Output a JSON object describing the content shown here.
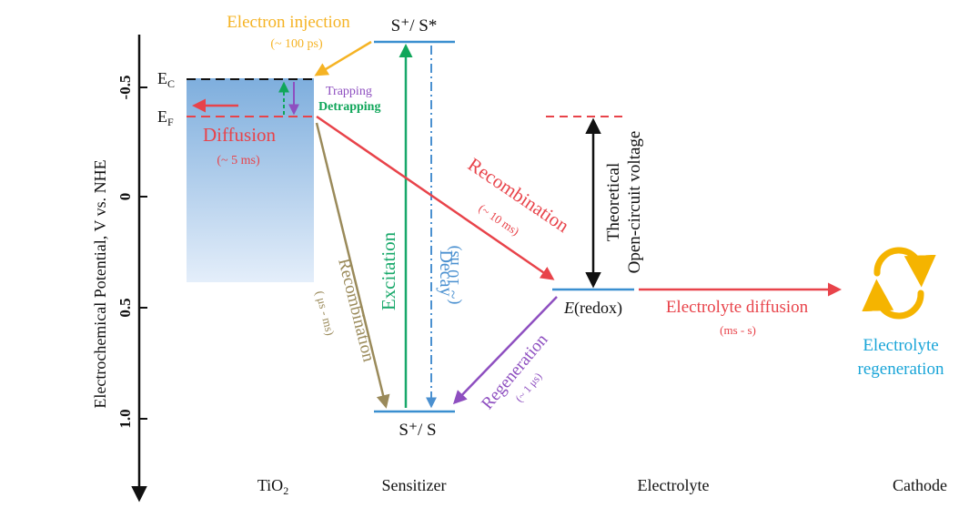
{
  "axis": {
    "label": "Electrochemical Potential, V vs. NHE",
    "ticks": [
      {
        "value": -0.5,
        "label": "-0.5"
      },
      {
        "value": 0,
        "label": "0"
      },
      {
        "value": 0.5,
        "label": "0.5"
      },
      {
        "value": 1.0,
        "label": "1.0"
      }
    ]
  },
  "columns": {
    "tio2": "TiO",
    "tio2_sub": "2",
    "sensitizer": "Sensitizer",
    "electrolyte": "Electrolyte",
    "cathode": "Cathode"
  },
  "levels": {
    "ec": "E",
    "ec_sub": "C",
    "ef": "E",
    "ef_sub": "F",
    "excited_state": "S⁺/ S*",
    "ground_state": "S⁺/ S",
    "redox_italic": "E",
    "redox_rest": "(redox)"
  },
  "processes": {
    "injection": {
      "label": "Electron injection",
      "time": "(~ 100 ps)"
    },
    "trapping": "Trapping",
    "detrapping": "Detrapping",
    "diffusion": {
      "label": "Diffusion",
      "time": "(~ 5 ms)"
    },
    "recombination_electrolyte": {
      "label": "Recombination",
      "time": "(~ 10 ms)"
    },
    "recombination_dye": {
      "label": "Recombination",
      "time": "( μs - ms)"
    },
    "excitation": "Excitation",
    "decay": {
      "label": "Decay",
      "time": "(~ 10 ns)"
    },
    "regeneration": {
      "label": "Regeneration",
      "time": "(~ 1 μs)"
    },
    "voltage": {
      "line1": "Theoretical",
      "line2": "Open-circuit voltage"
    },
    "electrolyte_diffusion": {
      "label": "Electrolyte diffusion",
      "time": "(ms - s)"
    },
    "cathode_regeneration": {
      "line1": "Electrolyte",
      "line2": "regeneration"
    }
  },
  "colors": {
    "injection": "#f5b324",
    "diffusion": "#e8434a",
    "trapping": "#8e4fc0",
    "detrapping": "#10a65a",
    "recomb_dye": "#9a8a5a",
    "excitation": "#18a86a",
    "decay": "#4a90d0",
    "regeneration": "#8e4fc0",
    "level": "#3a8fd0",
    "cathode": "#1aa5d8",
    "cathode_icon": "#f5b400"
  }
}
